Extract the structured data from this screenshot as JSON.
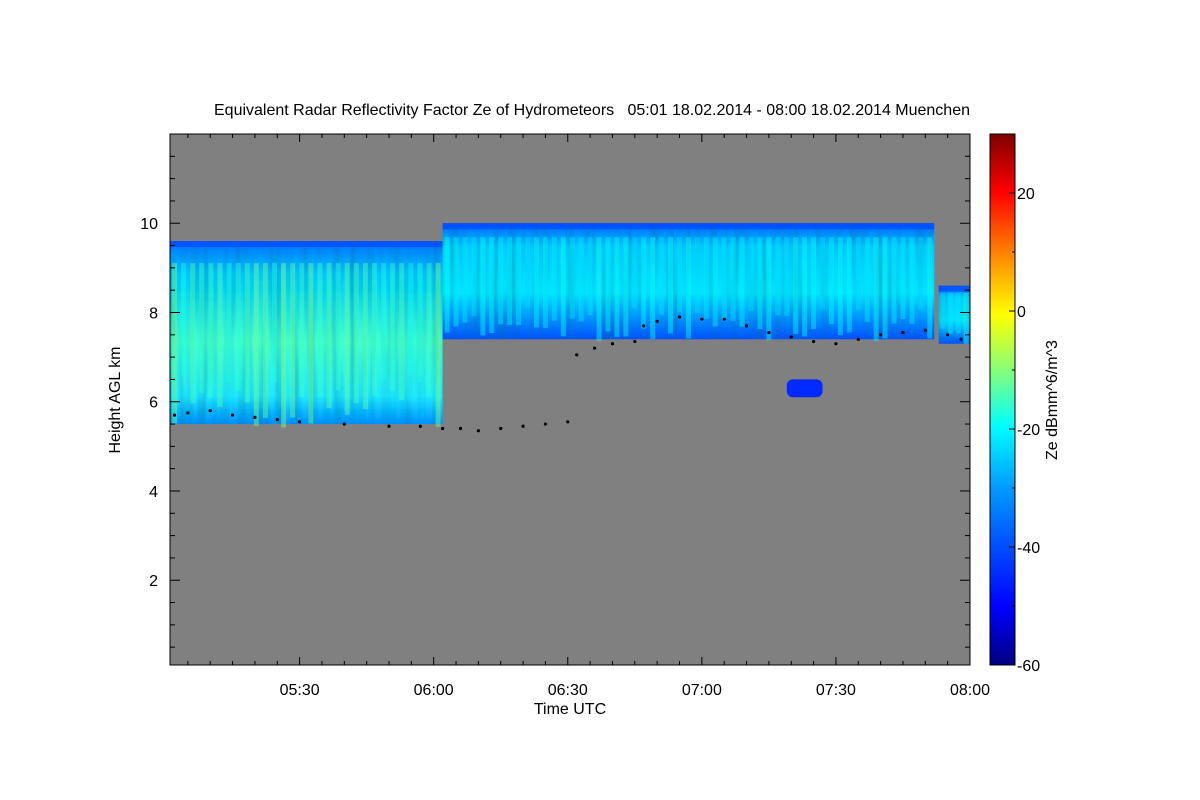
{
  "chart_data": {
    "type": "heatmap",
    "title": "Equivalent Radar Reflectivity Factor Ze of Hydrometeors   05:01 18.02.2014 - 08:00 18.02.2014 Muenchen",
    "xlabel": "Time UTC",
    "ylabel": "Height AGL km",
    "x_range_minutes_utc": [
      301,
      480
    ],
    "x_ticks": [
      {
        "minute": 330,
        "label": "05:30"
      },
      {
        "minute": 360,
        "label": "06:00"
      },
      {
        "minute": 390,
        "label": "06:30"
      },
      {
        "minute": 420,
        "label": "07:00"
      },
      {
        "minute": 450,
        "label": "07:30"
      },
      {
        "minute": 480,
        "label": "08:00"
      }
    ],
    "ylim": [
      0.1,
      12.0
    ],
    "y_ticks": [
      2,
      4,
      6,
      8,
      10
    ],
    "colorbar": {
      "label": "Ze dBmm^6/m^3",
      "range": [
        -60,
        30
      ],
      "ticks": [
        -60,
        -40,
        -20,
        0,
        20
      ],
      "colormap": "jet",
      "colors": [
        "#00007f",
        "#0000ff",
        "#007fff",
        "#00ffff",
        "#7fff7f",
        "#ffff00",
        "#ff7f00",
        "#ff0000",
        "#7f0000"
      ]
    },
    "background_color": "#808080",
    "echo_regions": [
      {
        "name": "early-cloud",
        "t_start": 301,
        "t_end": 362,
        "base_km": 5.5,
        "top_km": 9.6,
        "ze_typical_dbz": -25,
        "ze_max_dbz": -15
      },
      {
        "name": "main-cloud",
        "t_start": 362,
        "t_end": 472,
        "base_km": 7.4,
        "top_km": 10.0,
        "ze_typical_dbz": -30,
        "ze_max_dbz": -25
      },
      {
        "name": "late-cloud",
        "t_start": 473,
        "t_end": 480,
        "base_km": 7.3,
        "top_km": 8.6,
        "ze_typical_dbz": -30,
        "ze_max_dbz": -25
      },
      {
        "name": "isolated-echo",
        "t_start": 439,
        "t_end": 447,
        "base_km": 6.1,
        "top_km": 6.5,
        "ze_typical_dbz": -45,
        "ze_max_dbz": -40
      }
    ],
    "cloud_base_points": [
      [
        302,
        5.7
      ],
      [
        305,
        5.75
      ],
      [
        310,
        5.8
      ],
      [
        315,
        5.7
      ],
      [
        320,
        5.65
      ],
      [
        325,
        5.6
      ],
      [
        330,
        5.55
      ],
      [
        340,
        5.5
      ],
      [
        350,
        5.45
      ],
      [
        357,
        5.45
      ],
      [
        362,
        5.4
      ],
      [
        366,
        5.4
      ],
      [
        370,
        5.35
      ],
      [
        375,
        5.4
      ],
      [
        380,
        5.45
      ],
      [
        385,
        5.5
      ],
      [
        390,
        5.55
      ],
      [
        392,
        7.05
      ],
      [
        396,
        7.2
      ],
      [
        400,
        7.3
      ],
      [
        405,
        7.35
      ],
      [
        407,
        7.7
      ],
      [
        410,
        7.8
      ],
      [
        415,
        7.9
      ],
      [
        420,
        7.85
      ],
      [
        425,
        7.85
      ],
      [
        430,
        7.7
      ],
      [
        435,
        7.55
      ],
      [
        440,
        7.45
      ],
      [
        445,
        7.35
      ],
      [
        450,
        7.3
      ],
      [
        455,
        7.4
      ],
      [
        460,
        7.5
      ],
      [
        465,
        7.55
      ],
      [
        470,
        7.6
      ],
      [
        475,
        7.5
      ],
      [
        478,
        7.4
      ]
    ]
  }
}
